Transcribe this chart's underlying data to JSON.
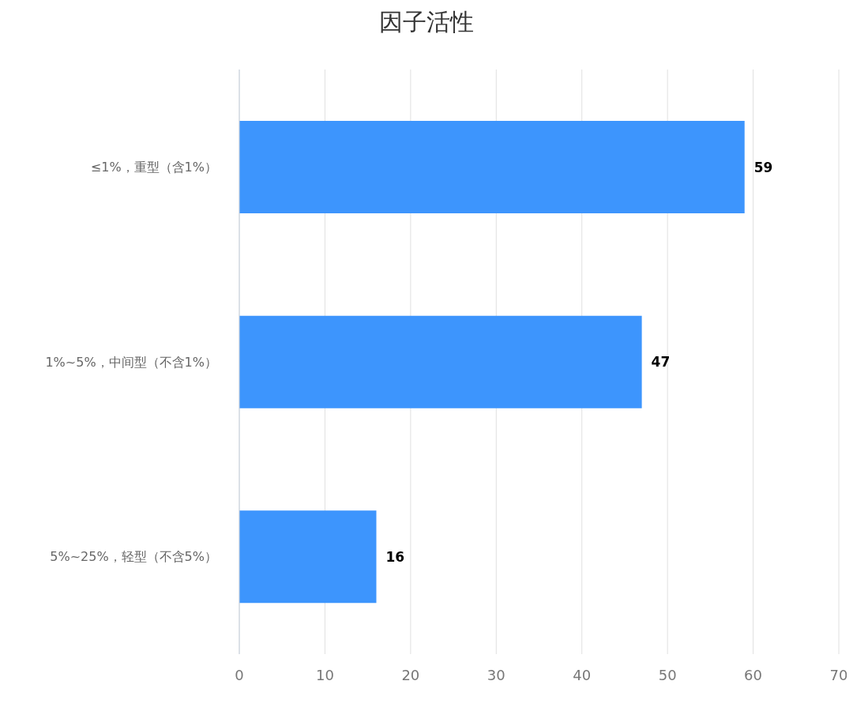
{
  "chart_data": {
    "type": "bar",
    "orientation": "horizontal",
    "title": "因子活性",
    "categories": [
      "≤1%，重型（含1%）",
      "1%~5%，中间型（不含1%）",
      "5%~25%，轻型（不含5%）"
    ],
    "values": [
      59,
      47,
      16
    ],
    "color": "#3d95fd",
    "data_labels": true,
    "xlim": [
      0,
      70
    ],
    "xticks": [
      0,
      10,
      20,
      30,
      40,
      50,
      60,
      70
    ],
    "grid": "x"
  }
}
